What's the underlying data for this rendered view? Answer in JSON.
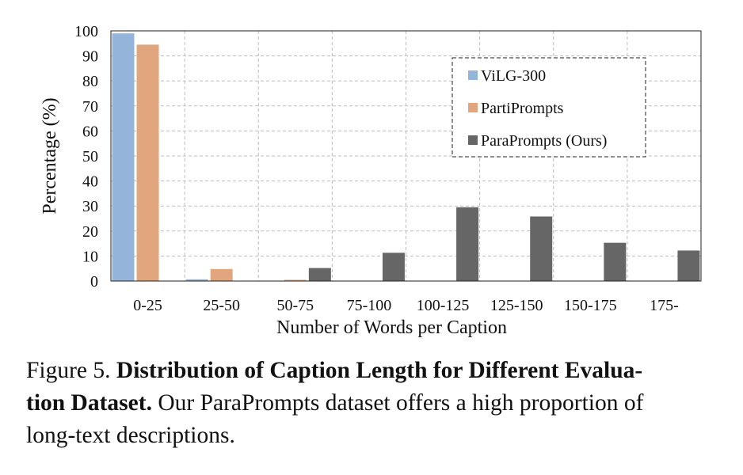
{
  "chart_data": {
    "type": "bar",
    "categories": [
      "0-25",
      "25-50",
      "50-75",
      "75-100",
      "100-125",
      "125-150",
      "150-175",
      "175-"
    ],
    "series": [
      {
        "name": "ViLG-300",
        "values": [
          99,
          0.7,
          0,
          0,
          0,
          0,
          0,
          0
        ],
        "color": "#94b4da"
      },
      {
        "name": "PartiPrompts",
        "values": [
          94.5,
          4.8,
          0.5,
          0,
          0,
          0,
          0,
          0
        ],
        "color": "#e2a67e"
      },
      {
        "name": "ParaPrompts (Ours)",
        "values": [
          0,
          0,
          5.2,
          11.3,
          29.5,
          25.8,
          15.3,
          12.2
        ],
        "color": "#666666"
      }
    ],
    "xlabel": "Number of Words per Caption",
    "ylabel": "Percentage (%)",
    "ylim": [
      0,
      100
    ],
    "yticks": [
      0,
      10,
      20,
      30,
      40,
      50,
      60,
      70,
      80,
      90,
      100
    ],
    "grid": true,
    "legend_position": "top-right"
  },
  "caption": {
    "label": "Figure 5.",
    "title": "Distribution of Caption Length for Different Evaluation Dataset.",
    "title_line1": "Distribution of Caption Length for Different Evalua-",
    "title_line2": "tion Dataset.",
    "body_line2": "Our ParaPrompts dataset offers a high proportion of",
    "body_line3": "long-text descriptions."
  }
}
